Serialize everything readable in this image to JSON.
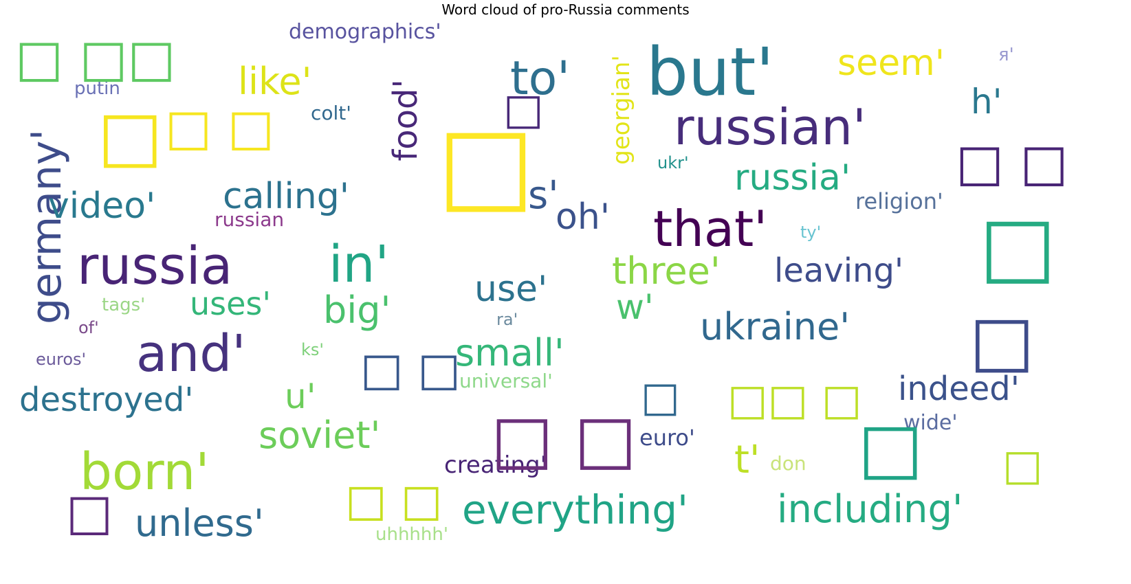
{
  "chart_data": {
    "type": "wordcloud",
    "title": "Word cloud of pro-Russia comments",
    "words": [
      {
        "text": "but'",
        "color": "#2a788e",
        "size": 96,
        "rotate": 0
      },
      {
        "text": "russian'",
        "color": "#472d7b",
        "size": 72,
        "rotate": 0
      },
      {
        "text": "that'",
        "color": "#440154",
        "size": 72,
        "rotate": 0
      },
      {
        "text": "russia",
        "color": "#482475",
        "size": 76,
        "rotate": 0
      },
      {
        "text": "in'",
        "color": "#21a585",
        "size": 74,
        "rotate": 0
      },
      {
        "text": "and'",
        "color": "#46327e",
        "size": 74,
        "rotate": 0
      },
      {
        "text": "born'",
        "color": "#a2da37",
        "size": 74,
        "rotate": 0
      },
      {
        "text": "to'",
        "color": "#2e6f8e",
        "size": 68,
        "rotate": 0
      },
      {
        "text": "germany'",
        "color": "#3e4c8a",
        "size": 60,
        "rotate": -90
      },
      {
        "text": "everything'",
        "color": "#20a486",
        "size": 58,
        "rotate": 0
      },
      {
        "text": "including'",
        "color": "#25ab82",
        "size": 56,
        "rotate": 0
      },
      {
        "text": "video'",
        "color": "#29798e",
        "size": 52,
        "rotate": 0
      },
      {
        "text": "russia'",
        "color": "#25ab82",
        "size": 52,
        "rotate": 0
      },
      {
        "text": "ukraine'",
        "color": "#31688e",
        "size": 54,
        "rotate": 0
      },
      {
        "text": "like'",
        "color": "#dde318",
        "size": 54,
        "rotate": 0
      },
      {
        "text": "seem'",
        "color": "#efe51c",
        "size": 52,
        "rotate": 0
      },
      {
        "text": "h'",
        "color": "#2a788e",
        "size": 50,
        "rotate": 0
      },
      {
        "text": "s'",
        "color": "#38588c",
        "size": 56,
        "rotate": 0
      },
      {
        "text": "oh'",
        "color": "#3b528b",
        "size": 52,
        "rotate": 0
      },
      {
        "text": "three'",
        "color": "#8bd646",
        "size": 54,
        "rotate": 0
      },
      {
        "text": "use'",
        "color": "#2c728e",
        "size": 52,
        "rotate": 0
      },
      {
        "text": "big'",
        "color": "#4ac16d",
        "size": 54,
        "rotate": 0
      },
      {
        "text": "uses'",
        "color": "#34b679",
        "size": 46,
        "rotate": 0
      },
      {
        "text": "w'",
        "color": "#4ac16d",
        "size": 50,
        "rotate": 0
      },
      {
        "text": "leaving'",
        "color": "#3e4c8a",
        "size": 48,
        "rotate": 0
      },
      {
        "text": "calling'",
        "color": "#2c728e",
        "size": 52,
        "rotate": 0
      },
      {
        "text": "food'",
        "color": "#482878",
        "size": 48,
        "rotate": -90
      },
      {
        "text": "small'",
        "color": "#35b779",
        "size": 54,
        "rotate": 0
      },
      {
        "text": "destroyed'",
        "color": "#2c728e",
        "size": 48,
        "rotate": 0
      },
      {
        "text": "u'",
        "color": "#6ccd5a",
        "size": 50,
        "rotate": 0
      },
      {
        "text": "indeed'",
        "color": "#3b528b",
        "size": 48,
        "rotate": 0
      },
      {
        "text": "soviet'",
        "color": "#6ccd5a",
        "size": 54,
        "rotate": 0
      },
      {
        "text": "t'",
        "color": "#bddf26",
        "size": 56,
        "rotate": 0
      },
      {
        "text": "unless'",
        "color": "#306a8e",
        "size": 54,
        "rotate": 0
      },
      {
        "text": "creating'",
        "color": "#482475",
        "size": 34,
        "rotate": 0
      },
      {
        "text": "georgian'",
        "color": "#e2e418",
        "size": 34,
        "rotate": -90
      },
      {
        "text": "demographics'",
        "color": "#58539f",
        "size": 30,
        "rotate": 0
      },
      {
        "text": "putin",
        "color": "#6a71b5",
        "size": 26,
        "rotate": 0
      },
      {
        "text": "colt'",
        "color": "#31688e",
        "size": 28,
        "rotate": 0
      },
      {
        "text": "religion'",
        "color": "#56719a",
        "size": 32,
        "rotate": 0
      },
      {
        "text": "ukr'",
        "color": "#21918c",
        "size": 24,
        "rotate": 0
      },
      {
        "text": "russian",
        "color": "#8c3a8c",
        "size": 28,
        "rotate": 0
      },
      {
        "text": "ty'",
        "color": "#67c3d0",
        "size": 24,
        "rotate": 0
      },
      {
        "text": "tags'",
        "color": "#9bd686",
        "size": 26,
        "rotate": 0
      },
      {
        "text": "of'",
        "color": "#7a4a8a",
        "size": 24,
        "rotate": 0
      },
      {
        "text": "ra'",
        "color": "#6b8a9e",
        "size": 24,
        "rotate": 0
      },
      {
        "text": "euros'",
        "color": "#6b5a9a",
        "size": 24,
        "rotate": 0
      },
      {
        "text": "ks'",
        "color": "#7ed07a",
        "size": 24,
        "rotate": 0
      },
      {
        "text": "universal'",
        "color": "#8ed88a",
        "size": 28,
        "rotate": 0
      },
      {
        "text": "euro'",
        "color": "#3e4c8a",
        "size": 32,
        "rotate": 0
      },
      {
        "text": "wide'",
        "color": "#5a6ca0",
        "size": 30,
        "rotate": 0
      },
      {
        "text": "don",
        "color": "#c9e37a",
        "size": 28,
        "rotate": 0
      },
      {
        "text": "uhhhhh'",
        "color": "#a8e08a",
        "size": 26,
        "rotate": 0
      },
      {
        "text": "я'",
        "color": "#9a9ad0",
        "size": 26,
        "rotate": 0
      },
      {
        "text": "□ □□",
        "color": "#5ec962",
        "size": 74,
        "rotate": 0
      },
      {
        "text": "□",
        "color": "#f6e620",
        "size": 100,
        "rotate": 0
      },
      {
        "text": "□ □",
        "color": "#f6e620",
        "size": 72,
        "rotate": 0
      },
      {
        "text": "□",
        "color": "#fde725",
        "size": 150,
        "rotate": 0
      },
      {
        "text": "□",
        "color": "#482878",
        "size": 62,
        "rotate": 0
      },
      {
        "text": "□ □",
        "color": "#482475",
        "size": 74,
        "rotate": 0
      },
      {
        "text": "□",
        "color": "#25ab82",
        "size": 118,
        "rotate": -90
      },
      {
        "text": "□",
        "color": "#3e4c8a",
        "size": 100,
        "rotate": 0
      },
      {
        "text": "□ □",
        "color": "#38588c",
        "size": 66,
        "rotate": 0
      },
      {
        "text": "□",
        "color": "#31688e",
        "size": 60,
        "rotate": 0
      },
      {
        "text": "□□ □",
        "color": "#bddf26",
        "size": 62,
        "rotate": 0
      },
      {
        "text": "□ □",
        "color": "#6b2f7a",
        "size": 96,
        "rotate": 0
      },
      {
        "text": "□",
        "color": "#20a486",
        "size": 100,
        "rotate": 0
      },
      {
        "text": "□",
        "color": "#b5de2b",
        "size": 62,
        "rotate": 0
      },
      {
        "text": "□",
        "color": "#5b2a7a",
        "size": 72,
        "rotate": 0
      },
      {
        "text": "□ □",
        "color": "#c8e020",
        "size": 64,
        "rotate": 0
      }
    ]
  }
}
